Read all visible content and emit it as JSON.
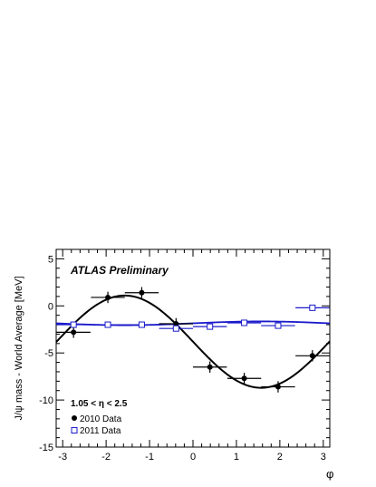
{
  "chart_data": {
    "type": "scatter",
    "title": "ATLAS Preliminary",
    "xlabel": "φ",
    "ylabel": "J/ψ mass - World Average [MeV]",
    "xlim": [
      -3.15,
      3.15
    ],
    "ylim": [
      -15,
      6
    ],
    "x_ticks": [
      "-3",
      "-2",
      "-1",
      "0",
      "1",
      "2",
      "3"
    ],
    "y_ticks": [
      "-15",
      "-10",
      "-5",
      "0",
      "5"
    ],
    "annotation": "1.05 < η < 2.5",
    "grid": false,
    "legend_position": "bottom-left",
    "series": [
      {
        "name": "2010 Data",
        "marker": "filled-circle",
        "color": "#000000",
        "x": [
          -2.75,
          -1.96,
          -1.18,
          -0.39,
          0.39,
          1.18,
          1.96,
          2.75
        ],
        "y": [
          -2.8,
          0.9,
          1.4,
          -1.9,
          -6.5,
          -7.7,
          -8.6,
          -5.3
        ],
        "xerr": [
          0.39,
          0.39,
          0.39,
          0.39,
          0.39,
          0.39,
          0.39,
          0.39
        ],
        "yerr": [
          0.6,
          0.6,
          0.6,
          0.6,
          0.6,
          0.6,
          0.6,
          0.6
        ],
        "fit": {
          "form": "sine",
          "offset": -3.8,
          "amplitude": 4.9,
          "phase_peak": -1.571
        }
      },
      {
        "name": "2011 Data",
        "marker": "open-square",
        "color": "#1a1acc",
        "x": [
          -2.75,
          -1.96,
          -1.18,
          -0.39,
          0.39,
          1.18,
          1.96,
          2.75
        ],
        "y": [
          -2.0,
          -2.0,
          -2.0,
          -2.4,
          -2.2,
          -1.8,
          -2.1,
          -0.2
        ],
        "xerr": [
          0.39,
          0.39,
          0.39,
          0.39,
          0.39,
          0.39,
          0.39,
          0.39
        ],
        "yerr": [
          0.25,
          0.25,
          0.25,
          0.25,
          0.25,
          0.25,
          0.25,
          0.25
        ],
        "fit": {
          "form": "sine",
          "offset": -1.85,
          "amplitude": 0.2,
          "phase_peak": 1.571
        }
      }
    ]
  }
}
